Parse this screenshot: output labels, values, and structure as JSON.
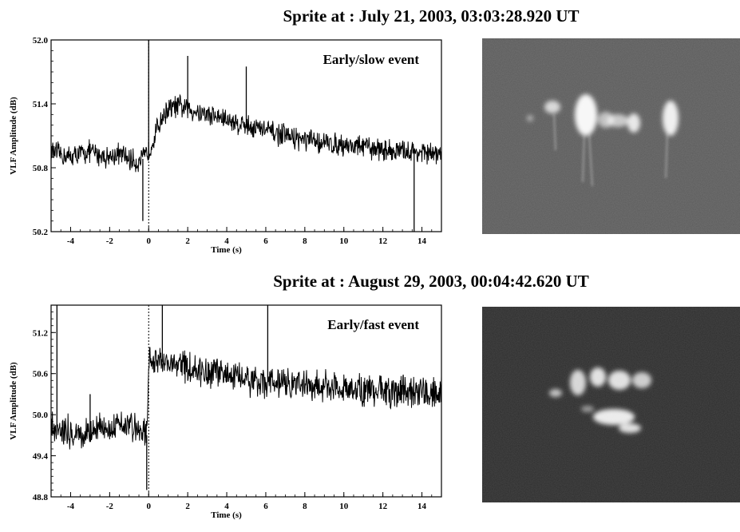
{
  "panels": [
    {
      "title": "Sprite at : July 21, 2003, 03:03:28.920 UT",
      "chart_data": {
        "type": "line",
        "annotation": "Early/slow event",
        "xlabel": "Time (s)",
        "ylabel": "VLF Amplitude (dB)",
        "xlim": [
          -5,
          15
        ],
        "ylim": [
          50.2,
          52.0
        ],
        "xticks": [
          -4,
          -2,
          0,
          2,
          4,
          6,
          8,
          10,
          12,
          14
        ],
        "yticks": [
          50.2,
          50.8,
          51.4,
          52.0
        ],
        "ytick_labels": [
          "50.2",
          "50.8",
          "51.4",
          "52.0"
        ],
        "event_marker_x": 0,
        "x": [
          -5,
          -4.5,
          -4,
          -3.5,
          -3,
          -2.5,
          -2,
          -1.5,
          -1,
          -0.5,
          -0.2,
          0,
          0.3,
          0.6,
          1,
          1.5,
          2,
          2.5,
          3,
          3.5,
          4,
          4.5,
          5,
          5.5,
          6,
          6.5,
          7,
          7.5,
          8,
          8.5,
          9,
          9.5,
          10,
          10.5,
          11,
          11.5,
          12,
          12.5,
          13,
          13.5,
          14,
          14.5,
          15
        ],
        "y": [
          50.95,
          50.92,
          50.9,
          50.93,
          50.95,
          50.92,
          50.9,
          50.93,
          50.88,
          50.85,
          50.9,
          50.95,
          51.1,
          51.25,
          51.35,
          51.38,
          51.35,
          51.33,
          51.3,
          51.28,
          51.25,
          51.22,
          51.2,
          51.18,
          51.15,
          51.12,
          51.1,
          51.08,
          51.05,
          51.05,
          51.03,
          51.02,
          51.02,
          51.0,
          51.0,
          50.98,
          50.97,
          50.96,
          50.95,
          50.95,
          50.94,
          50.93,
          50.92
        ],
        "noise_amplitude": 0.09,
        "spikes": [
          {
            "x": 0,
            "y": 52.0
          },
          {
            "x": 2,
            "y": 51.85
          },
          {
            "x": 5,
            "y": 51.75
          },
          {
            "x": -0.3,
            "y": 50.3
          },
          {
            "x": 13.6,
            "y": 50.2
          }
        ]
      },
      "image": {
        "alt": "sprite-photo-1"
      }
    },
    {
      "title": "Sprite at : August 29, 2003, 00:04:42.620 UT",
      "chart_data": {
        "type": "line",
        "annotation": "Early/fast event",
        "xlabel": "Time (s)",
        "ylabel": "VLF Amplitude (dB)",
        "xlim": [
          -5,
          15
        ],
        "ylim": [
          48.8,
          51.6
        ],
        "xticks": [
          -4,
          -2,
          0,
          2,
          4,
          6,
          8,
          10,
          12,
          14
        ],
        "yticks": [
          48.8,
          49.4,
          50.0,
          50.6,
          51.2
        ],
        "ytick_labels": [
          "48.8",
          "49.4",
          "50.0",
          "50.6",
          "51.2"
        ],
        "event_marker_x": 0,
        "x": [
          -5,
          -4.5,
          -4,
          -3.5,
          -3,
          -2.5,
          -2,
          -1.5,
          -1,
          -0.5,
          -0.1,
          0,
          0.2,
          0.5,
          1,
          1.5,
          2,
          2.5,
          3,
          3.5,
          4,
          4.5,
          5,
          5.5,
          6,
          6.5,
          7,
          7.5,
          8,
          8.5,
          9,
          9.5,
          10,
          10.5,
          11,
          11.5,
          12,
          12.5,
          13,
          13.5,
          14,
          14.5,
          15
        ],
        "y": [
          49.85,
          49.8,
          49.75,
          49.7,
          49.75,
          49.8,
          49.85,
          49.9,
          49.85,
          49.8,
          49.7,
          50.75,
          50.8,
          50.78,
          50.75,
          50.7,
          50.68,
          50.65,
          50.62,
          50.6,
          50.58,
          50.55,
          50.52,
          50.5,
          50.48,
          50.45,
          50.45,
          50.44,
          50.43,
          50.42,
          50.4,
          50.4,
          50.38,
          50.38,
          50.37,
          50.36,
          50.35,
          50.35,
          50.34,
          50.34,
          50.33,
          50.33,
          50.32
        ],
        "noise_amplitude": 0.2,
        "spikes": [
          {
            "x": -4.7,
            "y": 51.6
          },
          {
            "x": 0.7,
            "y": 51.6
          },
          {
            "x": 6.1,
            "y": 51.6
          },
          {
            "x": -3,
            "y": 50.3
          },
          {
            "x": -0.1,
            "y": 48.9
          }
        ]
      },
      "image": {
        "alt": "sprite-photo-2"
      }
    }
  ]
}
